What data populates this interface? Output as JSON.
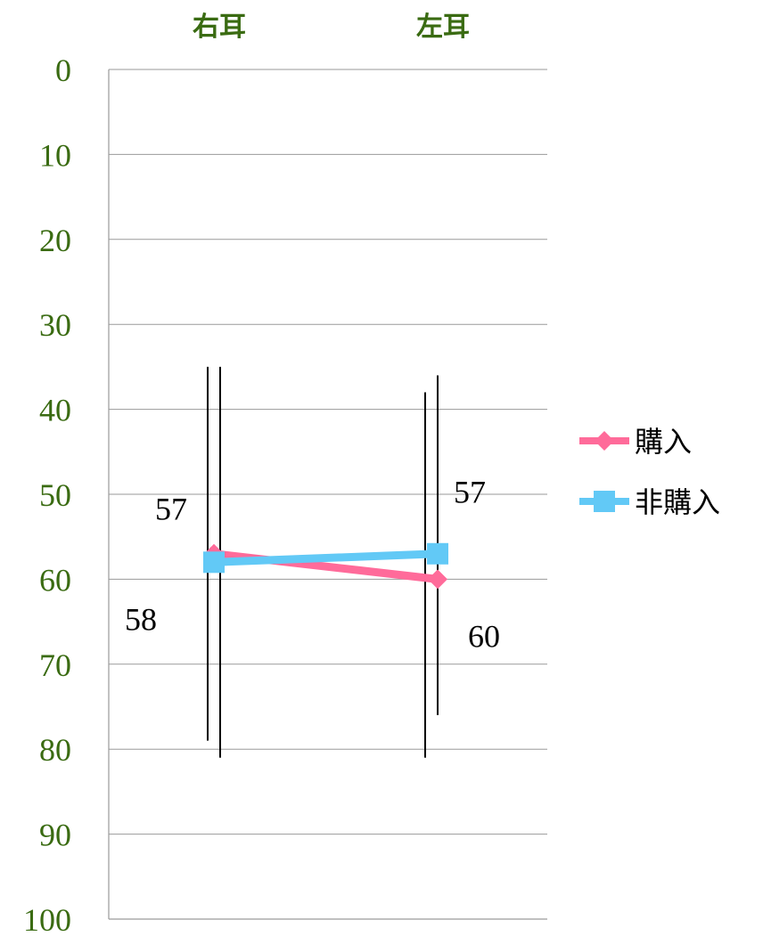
{
  "chart_data": {
    "type": "line",
    "categories": [
      "右耳",
      "左耳"
    ],
    "ylim": [
      0,
      100
    ],
    "y_ticks": [
      0,
      10,
      20,
      30,
      40,
      50,
      60,
      70,
      80,
      90,
      100
    ],
    "y_inverted": true,
    "grid": true,
    "legend_position": "right",
    "series": [
      {
        "name": "購入",
        "values": [
          57,
          60
        ],
        "labels": [
          "57",
          "60"
        ],
        "color": "#ff6b9a",
        "marker": "diamond",
        "error_low": [
          35,
          38
        ],
        "error_high": [
          79,
          81
        ]
      },
      {
        "name": "非購入",
        "values": [
          58,
          57
        ],
        "labels": [
          "58",
          "57"
        ],
        "color": "#62c9f6",
        "marker": "square",
        "error_low": [
          35,
          36
        ],
        "error_high": [
          81,
          76
        ]
      }
    ]
  }
}
